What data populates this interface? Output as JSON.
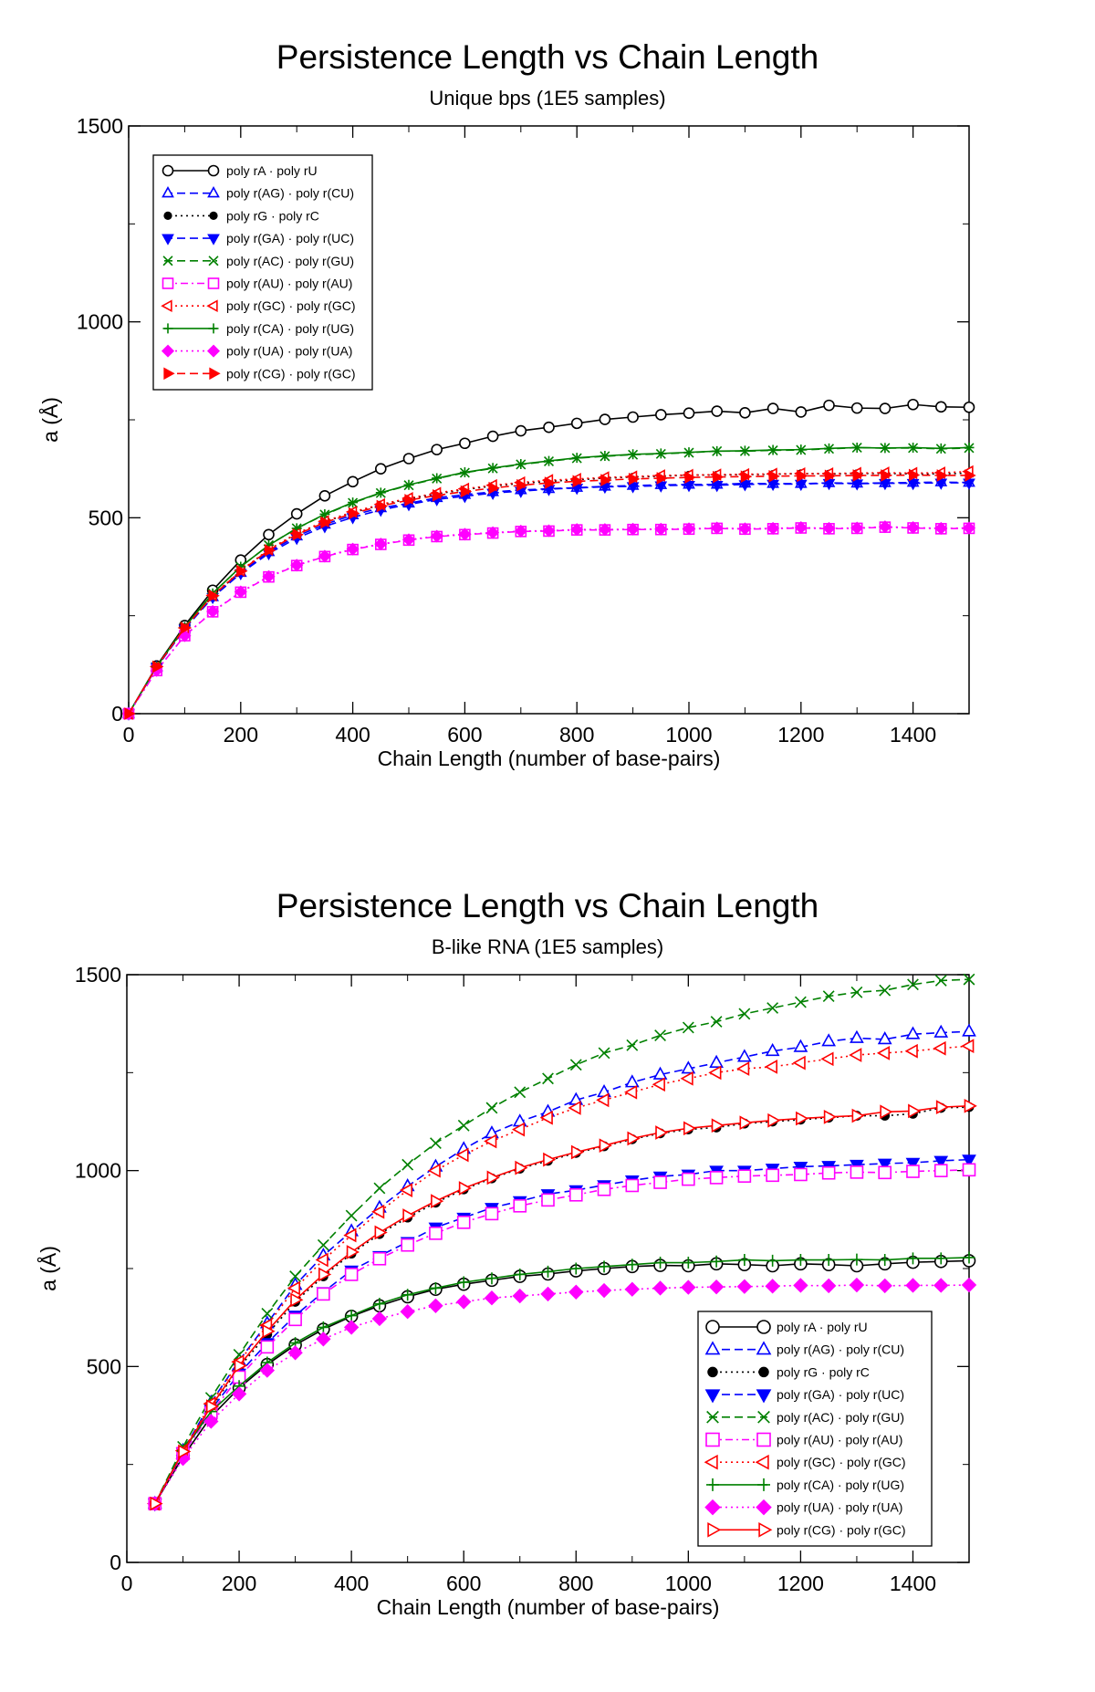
{
  "charts": [
    {
      "title": "Persistence Length vs Chain Length",
      "subtitle": "Unique bps (1E5 samples)"
    },
    {
      "title": "Persistence Length vs Chain Length",
      "subtitle": "B-like RNA  (1E5 samples)"
    }
  ],
  "chart_data": [
    {
      "type": "line",
      "title": "Persistence Length vs Chain Length",
      "subtitle": "Unique bps (1E5 samples)",
      "xlabel": "Chain Length (number of base-pairs)",
      "ylabel": "a (Å)",
      "xlim": [
        0,
        1500
      ],
      "ylim": [
        0,
        1500
      ],
      "xticks": [
        0,
        200,
        400,
        600,
        800,
        1000,
        1200,
        1400
      ],
      "yticks": [
        0,
        500,
        1000,
        1500
      ],
      "grid": false,
      "legend_position": "top-left",
      "legend_marker_size": "small",
      "x": [
        0,
        50,
        100,
        150,
        200,
        250,
        300,
        350,
        400,
        450,
        500,
        550,
        600,
        650,
        700,
        750,
        800,
        850,
        900,
        950,
        1000,
        1050,
        1100,
        1150,
        1200,
        1250,
        1300,
        1350,
        1400,
        1450,
        1500
      ],
      "series": [
        {
          "name": "poly rA · poly rU",
          "color": "#000000",
          "dash": "solid",
          "marker": "circle-open",
          "values": [
            0,
            122,
            225,
            315,
            392,
            457,
            510,
            556,
            592,
            625,
            651,
            674,
            690,
            708,
            722,
            731,
            741,
            751,
            757,
            763,
            767,
            772,
            768,
            779,
            770,
            787,
            780,
            779,
            789,
            783,
            782
          ]
        },
        {
          "name": "poly r(AG) · poly r(CU)",
          "color": "#0000ff",
          "dash": "dash",
          "marker": "triangle-up-open",
          "values": [
            0,
            118,
            217,
            298,
            360,
            413,
            453,
            483,
            507,
            525,
            537,
            551,
            559,
            566,
            571,
            574,
            577,
            580,
            582,
            584,
            585,
            585,
            588,
            587,
            587,
            589,
            588,
            589,
            590,
            591,
            590
          ]
        },
        {
          "name": "poly rG · poly rC",
          "color": "#000000",
          "dash": "dot",
          "marker": "circle-filled",
          "values": [
            0,
            119,
            218,
            300,
            363,
            419,
            459,
            490,
            513,
            533,
            548,
            561,
            572,
            581,
            588,
            593,
            597,
            601,
            604,
            606,
            609,
            609,
            610,
            611,
            613,
            612,
            613,
            613,
            612,
            612,
            614
          ]
        },
        {
          "name": "poly r(GA) · poly r(UC)",
          "color": "#0000ff",
          "dash": "dash",
          "marker": "triangle-down-filled",
          "values": [
            0,
            119,
            216,
            297,
            358,
            409,
            448,
            478,
            501,
            520,
            534,
            547,
            555,
            563,
            568,
            573,
            576,
            579,
            580,
            582,
            583,
            583,
            585,
            586,
            586,
            588,
            587,
            588,
            588,
            589,
            589
          ]
        },
        {
          "name": "poly r(AC) · poly r(GU)",
          "color": "#008000",
          "dash": "dash",
          "marker": "x",
          "values": [
            0,
            120,
            221,
            307,
            375,
            430,
            473,
            508,
            538,
            563,
            583,
            600,
            615,
            626,
            636,
            644,
            652,
            657,
            661,
            663,
            666,
            670,
            670,
            672,
            673,
            676,
            679,
            678,
            678,
            676,
            678
          ]
        },
        {
          "name": "poly r(AU) · poly r(AU)",
          "color": "#ff00ff",
          "dash": "dashdot",
          "marker": "square-open",
          "values": [
            0,
            110,
            199,
            260,
            310,
            349,
            378,
            401,
            419,
            432,
            443,
            452,
            457,
            461,
            465,
            466,
            469,
            469,
            470,
            470,
            471,
            473,
            471,
            472,
            474,
            472,
            473,
            476,
            474,
            472,
            473
          ]
        },
        {
          "name": "poly r(GC) · poly r(GC)",
          "color": "#ff0000",
          "dash": "dot",
          "marker": "triangle-left-open",
          "values": [
            0,
            120,
            219,
            302,
            365,
            419,
            460,
            491,
            515,
            534,
            550,
            563,
            574,
            583,
            590,
            596,
            599,
            603,
            605,
            608,
            609,
            610,
            611,
            612,
            613,
            613,
            614,
            615,
            614,
            615,
            618
          ]
        },
        {
          "name": "poly r(CA) · poly r(UG)",
          "color": "#008000",
          "dash": "solid",
          "marker": "plus",
          "values": [
            0,
            120,
            221,
            307,
            375,
            430,
            473,
            509,
            539,
            564,
            584,
            601,
            616,
            627,
            637,
            645,
            653,
            658,
            662,
            664,
            667,
            670,
            671,
            673,
            674,
            677,
            679,
            678,
            679,
            677,
            679
          ]
        },
        {
          "name": "poly r(UA) · poly r(UA)",
          "color": "#ff00ff",
          "dash": "dot",
          "marker": "diamond-filled",
          "values": [
            0,
            110,
            199,
            261,
            311,
            350,
            379,
            402,
            420,
            433,
            444,
            453,
            458,
            462,
            466,
            467,
            470,
            470,
            471,
            471,
            472,
            474,
            472,
            473,
            475,
            473,
            474,
            477,
            475,
            473,
            474
          ]
        },
        {
          "name": "poly r(CG) · poly r(GC)",
          "color": "#ff0000",
          "dash": "dash",
          "marker": "triangle-right-filled",
          "values": [
            0,
            120,
            219,
            301,
            364,
            417,
            457,
            488,
            511,
            530,
            545,
            557,
            567,
            576,
            583,
            589,
            593,
            596,
            599,
            601,
            603,
            604,
            605,
            606,
            607,
            607,
            608,
            608,
            609,
            608,
            608
          ]
        }
      ]
    },
    {
      "type": "line",
      "title": "Persistence Length vs Chain Length",
      "subtitle": "B-like RNA  (1E5 samples)",
      "xlabel": "Chain Length (number of base-pairs)",
      "ylabel": "a (Å)",
      "xlim": [
        0,
        1500
      ],
      "ylim": [
        0,
        1500
      ],
      "xticks": [
        0,
        200,
        400,
        600,
        800,
        1000,
        1200,
        1400
      ],
      "yticks": [
        0,
        500,
        1000,
        1500
      ],
      "grid": false,
      "legend_position": "bottom-right",
      "legend_marker_size": "large",
      "x": [
        50,
        100,
        150,
        200,
        250,
        300,
        350,
        400,
        450,
        500,
        550,
        600,
        650,
        700,
        750,
        800,
        850,
        900,
        950,
        1000,
        1050,
        1100,
        1150,
        1200,
        1250,
        1300,
        1350,
        1400,
        1450,
        1500
      ],
      "series": [
        {
          "name": "poly rA · poly rU",
          "color": "#000000",
          "dash": "solid",
          "marker": "circle-open",
          "values": [
            150,
            270,
            372,
            445,
            505,
            555,
            595,
            628,
            655,
            678,
            697,
            710,
            720,
            730,
            736,
            744,
            750,
            755,
            758,
            757,
            762,
            760,
            757,
            762,
            760,
            757,
            762,
            766,
            768,
            770
          ]
        },
        {
          "name": "poly r(AG) · poly r(CU)",
          "color": "#0000ff",
          "dash": "dash",
          "marker": "triangle-up-open",
          "values": [
            150,
            285,
            408,
            515,
            610,
            708,
            783,
            845,
            905,
            960,
            1010,
            1055,
            1095,
            1125,
            1150,
            1180,
            1200,
            1225,
            1245,
            1260,
            1275,
            1290,
            1305,
            1315,
            1330,
            1338,
            1335,
            1348,
            1352,
            1355
          ]
        },
        {
          "name": "poly rG · poly rC",
          "color": "#000000",
          "dash": "dot",
          "marker": "circle-filled",
          "values": [
            150,
            280,
            395,
            497,
            582,
            665,
            730,
            788,
            838,
            880,
            918,
            952,
            980,
            1005,
            1025,
            1045,
            1062,
            1080,
            1095,
            1105,
            1110,
            1120,
            1125,
            1130,
            1135,
            1140,
            1140,
            1145,
            1160,
            1162
          ]
        },
        {
          "name": "poly r(GA) · poly r(UC)",
          "color": "#0000ff",
          "dash": "dash",
          "marker": "triangle-down-filled",
          "values": [
            150,
            280,
            390,
            482,
            560,
            630,
            690,
            745,
            782,
            818,
            855,
            880,
            905,
            922,
            940,
            950,
            963,
            975,
            985,
            990,
            1000,
            1000,
            1005,
            1010,
            1012,
            1015,
            1018,
            1020,
            1025,
            1028
          ]
        },
        {
          "name": "poly r(AC) · poly r(GU)",
          "color": "#008000",
          "dash": "dash",
          "marker": "x",
          "values": [
            150,
            295,
            420,
            530,
            635,
            730,
            810,
            885,
            955,
            1015,
            1070,
            1115,
            1160,
            1200,
            1235,
            1270,
            1300,
            1320,
            1345,
            1365,
            1380,
            1400,
            1415,
            1430,
            1445,
            1455,
            1460,
            1475,
            1485,
            1488
          ]
        },
        {
          "name": "poly r(AU) · poly r(AU)",
          "color": "#ff00ff",
          "dash": "dashdot",
          "marker": "square-open",
          "values": [
            150,
            278,
            382,
            473,
            550,
            620,
            685,
            735,
            775,
            810,
            840,
            868,
            890,
            910,
            925,
            938,
            952,
            962,
            970,
            978,
            982,
            986,
            988,
            990,
            994,
            996,
            995,
            998,
            1000,
            1002
          ]
        },
        {
          "name": "poly r(GC) · poly r(GC)",
          "color": "#ff0000",
          "dash": "dot",
          "marker": "triangle-left-open",
          "values": [
            150,
            285,
            405,
            512,
            605,
            700,
            772,
            835,
            895,
            950,
            1000,
            1040,
            1075,
            1105,
            1135,
            1160,
            1180,
            1200,
            1220,
            1235,
            1250,
            1260,
            1265,
            1275,
            1285,
            1295,
            1300,
            1305,
            1312,
            1318
          ]
        },
        {
          "name": "poly r(CA) · poly r(UG)",
          "color": "#008000",
          "dash": "solid",
          "marker": "plus",
          "values": [
            150,
            285,
            385,
            450,
            510,
            560,
            600,
            630,
            660,
            683,
            700,
            715,
            725,
            735,
            742,
            750,
            755,
            760,
            765,
            765,
            768,
            772,
            770,
            772,
            772,
            773,
            772,
            776,
            776,
            778
          ]
        },
        {
          "name": "poly r(UA) · poly r(UA)",
          "color": "#ff00ff",
          "dash": "dot",
          "marker": "diamond-filled",
          "values": [
            150,
            265,
            360,
            430,
            490,
            535,
            570,
            600,
            622,
            640,
            655,
            665,
            675,
            680,
            685,
            690,
            694,
            697,
            700,
            702,
            703,
            704,
            705,
            707,
            706,
            708,
            706,
            707,
            707,
            708
          ]
        },
        {
          "name": "poly r(CG) · poly r(GC)",
          "color": "#ff0000",
          "dash": "solid",
          "marker": "triangle-right-open",
          "values": [
            150,
            283,
            398,
            502,
            590,
            670,
            735,
            792,
            842,
            885,
            922,
            955,
            982,
            1007,
            1028,
            1047,
            1064,
            1082,
            1097,
            1108,
            1115,
            1122,
            1128,
            1133,
            1137,
            1140,
            1150,
            1152,
            1162,
            1165
          ]
        }
      ]
    }
  ]
}
